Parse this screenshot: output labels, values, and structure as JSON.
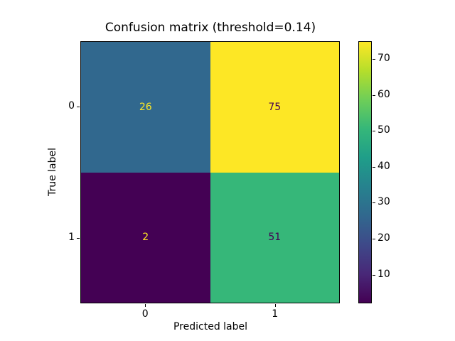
{
  "chart_data": {
    "type": "heatmap",
    "title": "Confusion matrix (threshold=0.14)",
    "xlabel": "Predicted label",
    "ylabel": "True label",
    "x_tick_labels": [
      "0",
      "1"
    ],
    "y_tick_labels": [
      "0",
      "1"
    ],
    "matrix": [
      [
        26,
        75
      ],
      [
        2,
        51
      ]
    ],
    "cell_colors": [
      [
        "#31688e",
        "#fde725"
      ],
      [
        "#440154",
        "#36b779"
      ]
    ],
    "cell_text_colors": [
      [
        "#fde725",
        "#440154"
      ],
      [
        "#fde725",
        "#440154"
      ]
    ],
    "colormap": "viridis",
    "vmin": 2,
    "vmax": 75,
    "colorbar_ticks": [
      10,
      20,
      30,
      40,
      50,
      60,
      70
    ],
    "colorbar_gradient_stops": [
      "#440154",
      "#482878",
      "#3e4989",
      "#31688e",
      "#26828e",
      "#1f9e89",
      "#35b779",
      "#6ece58",
      "#b5de2b",
      "#fde725"
    ],
    "legend": "none",
    "grid": false
  }
}
